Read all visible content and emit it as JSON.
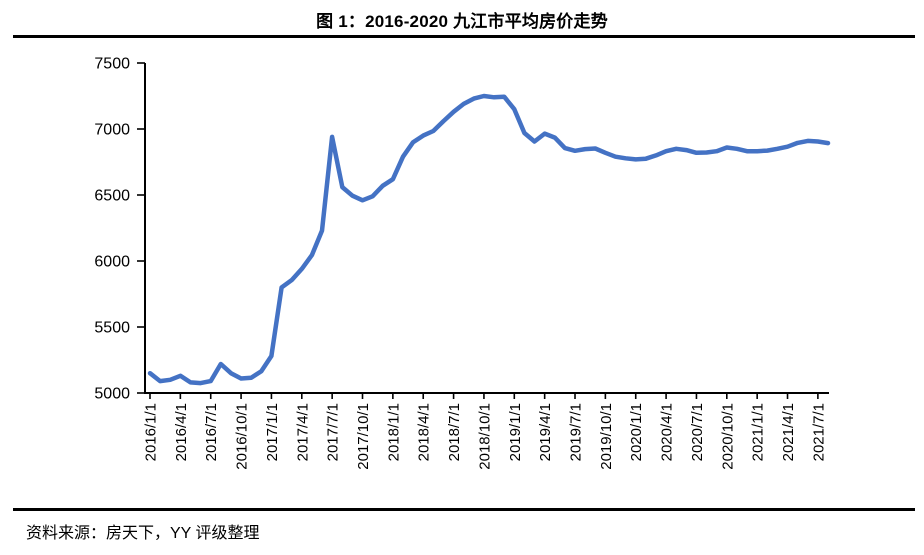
{
  "header": {
    "title": "图 1：2016-2020 九江市平均房价走势"
  },
  "footer": {
    "source": "资料来源：房天下，YY 评级整理"
  },
  "chart_data": {
    "type": "line",
    "title": "图 1：2016-2020 九江市平均房价走势",
    "xlabel": "",
    "ylabel": "",
    "ylim": [
      5000,
      7500
    ],
    "y_ticks": [
      5000,
      5500,
      6000,
      6500,
      7000,
      7500
    ],
    "grid": false,
    "legend_position": "none",
    "axis_color": "#000000",
    "x_tick_every": 3,
    "x_tick_labels": [
      "2016/1/1",
      "2016/4/1",
      "2016/7/1",
      "2016/10/1",
      "2017/1/1",
      "2017/4/1",
      "2017/7/1",
      "2017/10/1",
      "2018/1/1",
      "2018/4/1",
      "2018/7/1",
      "2018/10/1",
      "2019/1/1",
      "2019/4/1",
      "2019/7/1",
      "2019/10/1",
      "2020/1/1",
      "2020/4/1",
      "2020/7/1",
      "2020/10/1",
      "2021/1/1",
      "2021/4/1",
      "2021/7/1"
    ],
    "series": [
      {
        "name": "九江市平均房价",
        "color": "#4472C4",
        "values": [
          5150,
          5090,
          5100,
          5130,
          5080,
          5075,
          5090,
          5220,
          5150,
          5110,
          5115,
          5165,
          5280,
          5800,
          5855,
          5940,
          6045,
          6230,
          6940,
          6560,
          6495,
          6460,
          6490,
          6570,
          6620,
          6790,
          6900,
          6950,
          6985,
          7060,
          7130,
          7190,
          7230,
          7250,
          7240,
          7245,
          7150,
          6970,
          6905,
          6965,
          6935,
          6855,
          6835,
          6848,
          6852,
          6820,
          6790,
          6778,
          6770,
          6775,
          6800,
          6832,
          6850,
          6840,
          6820,
          6822,
          6832,
          6860,
          6850,
          6832,
          6832,
          6836,
          6850,
          6866,
          6895,
          6910,
          6905,
          6893
        ]
      }
    ]
  }
}
